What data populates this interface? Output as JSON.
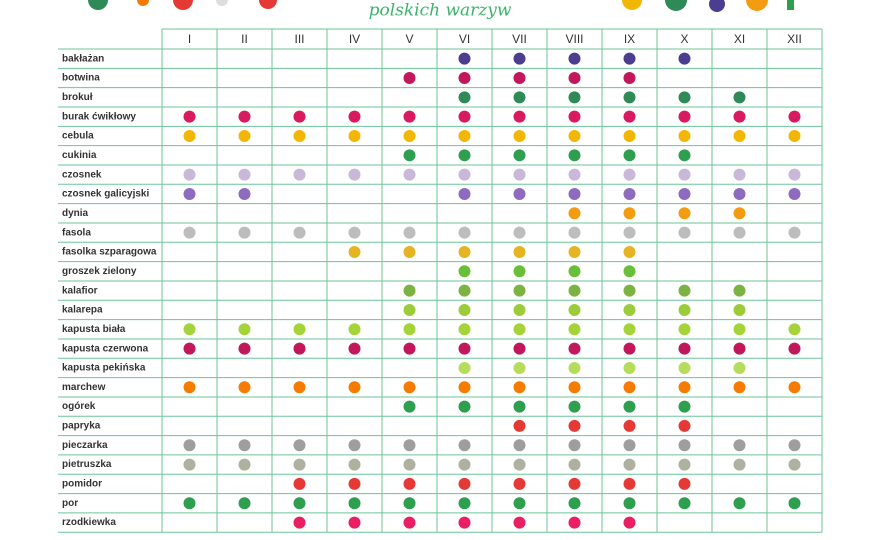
{
  "header": {
    "subtitle": "polskich warzyw"
  },
  "months": [
    "I",
    "II",
    "III",
    "IV",
    "V",
    "VI",
    "VII",
    "VIII",
    "IX",
    "X",
    "XI",
    "XII"
  ],
  "rows": [
    {
      "name": "bakłażan",
      "color": "#4b3d8f",
      "months": [
        false,
        false,
        false,
        false,
        false,
        true,
        true,
        true,
        true,
        true,
        false,
        false
      ]
    },
    {
      "name": "botwina",
      "color": "#c2185b",
      "months": [
        false,
        false,
        false,
        false,
        true,
        true,
        true,
        true,
        true,
        false,
        false,
        false
      ]
    },
    {
      "name": "brokuł",
      "color": "#2e8b57",
      "months": [
        false,
        false,
        false,
        false,
        false,
        true,
        true,
        true,
        true,
        true,
        true,
        false
      ]
    },
    {
      "name": "burak ćwikłowy",
      "color": "#d81b60",
      "months": [
        true,
        true,
        true,
        true,
        true,
        true,
        true,
        true,
        true,
        true,
        true,
        true
      ]
    },
    {
      "name": "cebula",
      "color": "#f2b705",
      "months": [
        true,
        true,
        true,
        true,
        true,
        true,
        true,
        true,
        true,
        true,
        true,
        true
      ]
    },
    {
      "name": "cukinia",
      "color": "#2e9e4f",
      "months": [
        false,
        false,
        false,
        false,
        true,
        true,
        true,
        true,
        true,
        true,
        false,
        false
      ]
    },
    {
      "name": "czosnek",
      "color": "#c9b8d8",
      "months": [
        true,
        true,
        true,
        true,
        true,
        true,
        true,
        true,
        true,
        true,
        true,
        true
      ]
    },
    {
      "name": "czosnek galicyjski",
      "color": "#8e6bbf",
      "months": [
        true,
        true,
        false,
        false,
        false,
        true,
        true,
        true,
        true,
        true,
        true,
        true
      ]
    },
    {
      "name": "dynia",
      "color": "#f39c12",
      "months": [
        false,
        false,
        false,
        false,
        false,
        false,
        false,
        true,
        true,
        true,
        true,
        false
      ]
    },
    {
      "name": "fasola",
      "color": "#bdbdbd",
      "months": [
        true,
        true,
        true,
        true,
        true,
        true,
        true,
        true,
        true,
        true,
        true,
        true
      ]
    },
    {
      "name": "fasolka szparagowa",
      "color": "#e6b422",
      "months": [
        false,
        false,
        false,
        true,
        true,
        true,
        true,
        true,
        true,
        false,
        false,
        false
      ]
    },
    {
      "name": "groszek zielony",
      "color": "#6abf3a",
      "months": [
        false,
        false,
        false,
        false,
        false,
        true,
        true,
        true,
        true,
        false,
        false,
        false
      ]
    },
    {
      "name": "kalafior",
      "color": "#7cb342",
      "months": [
        false,
        false,
        false,
        false,
        true,
        true,
        true,
        true,
        true,
        true,
        true,
        false
      ]
    },
    {
      "name": "kalarepa",
      "color": "#9ccc3a",
      "months": [
        false,
        false,
        false,
        false,
        true,
        true,
        true,
        true,
        true,
        true,
        true,
        false
      ]
    },
    {
      "name": "kapusta biała",
      "color": "#a5d43a",
      "months": [
        true,
        true,
        true,
        true,
        true,
        true,
        true,
        true,
        true,
        true,
        true,
        true
      ]
    },
    {
      "name": "kapusta czerwona",
      "color": "#c2185b",
      "months": [
        true,
        true,
        true,
        true,
        true,
        true,
        true,
        true,
        true,
        true,
        true,
        true
      ]
    },
    {
      "name": "kapusta pekińska",
      "color": "#b5dc5a",
      "months": [
        false,
        false,
        false,
        false,
        false,
        true,
        true,
        true,
        true,
        true,
        true,
        false
      ]
    },
    {
      "name": "marchew",
      "color": "#f57c00",
      "months": [
        true,
        true,
        true,
        true,
        true,
        true,
        true,
        true,
        true,
        true,
        true,
        true
      ]
    },
    {
      "name": "ogórek",
      "color": "#2e9e4f",
      "months": [
        false,
        false,
        false,
        false,
        true,
        true,
        true,
        true,
        true,
        true,
        false,
        false
      ]
    },
    {
      "name": "papryka",
      "color": "#e53935",
      "months": [
        false,
        false,
        false,
        false,
        false,
        false,
        true,
        true,
        true,
        true,
        false,
        false
      ]
    },
    {
      "name": "pieczarka",
      "color": "#9e9e9e",
      "months": [
        true,
        true,
        true,
        true,
        true,
        true,
        true,
        true,
        true,
        true,
        true,
        true
      ]
    },
    {
      "name": "pietruszka",
      "color": "#b0b0a0",
      "months": [
        true,
        true,
        true,
        true,
        true,
        true,
        true,
        true,
        true,
        true,
        true,
        true
      ]
    },
    {
      "name": "pomidor",
      "color": "#e53935",
      "months": [
        false,
        false,
        true,
        true,
        true,
        true,
        true,
        true,
        true,
        true,
        false,
        false
      ]
    },
    {
      "name": "por",
      "color": "#2e9e4f",
      "months": [
        true,
        true,
        true,
        true,
        true,
        true,
        true,
        true,
        true,
        true,
        true,
        true
      ]
    },
    {
      "name": "rzodkiewka",
      "color": "#e91e63",
      "months": [
        false,
        false,
        true,
        true,
        true,
        true,
        true,
        true,
        true,
        false,
        false,
        false
      ]
    }
  ]
}
